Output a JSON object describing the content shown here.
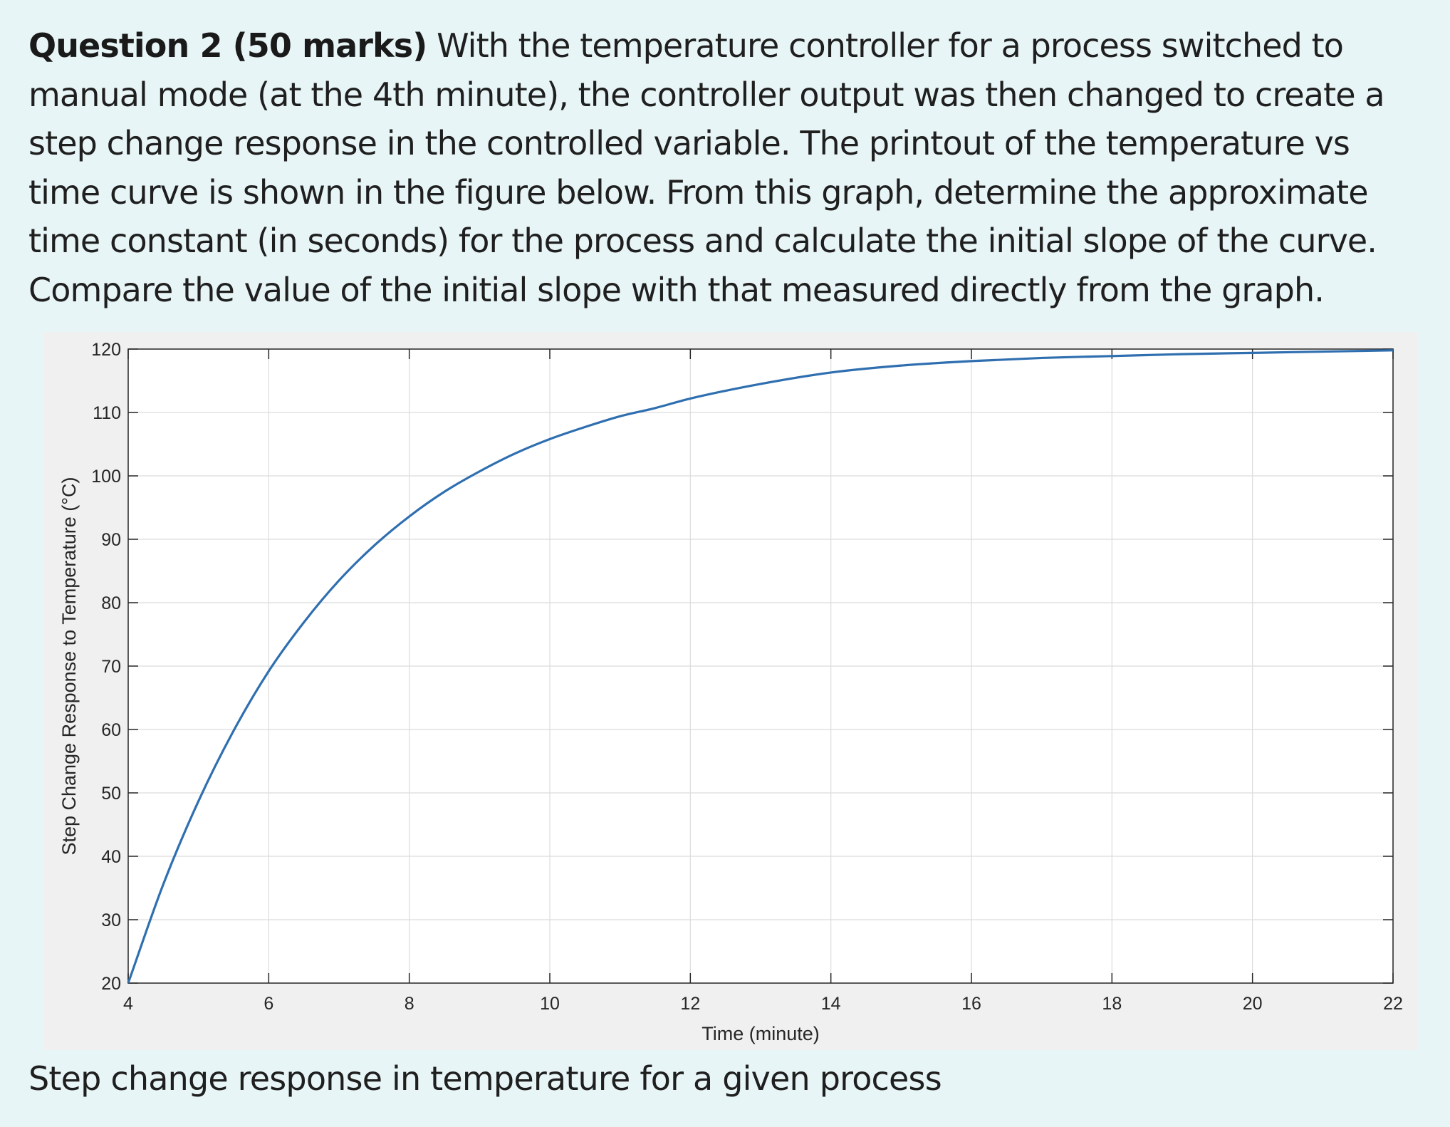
{
  "question": {
    "heading": "Question 2 (50 marks)",
    "text": " With the temperature controller for a process switched to manual mode (at the 4th minute), the controller output was then changed to create a step change response in the controlled variable. The printout of the temperature vs time curve is shown in the figure below. From this graph, determine the approximate time constant (in seconds) for the process and calculate the initial slope of the curve. Compare the value of the initial slope with that measured directly from the graph."
  },
  "caption": "Step change response in temperature for a given process",
  "colors": {
    "line": "#2f6fb0",
    "grid": "#dcdcdc",
    "axis": "#262626"
  },
  "chart_data": {
    "type": "line",
    "title": "",
    "xlabel": "Time (minute)",
    "ylabel": "Step Change Response to Temperature (°C)",
    "xlim": [
      4,
      22
    ],
    "ylim": [
      20,
      120
    ],
    "xticks": [
      "4",
      "6",
      "8",
      "10",
      "12",
      "14",
      "16",
      "18",
      "20",
      "22"
    ],
    "yticks": [
      "20",
      "30",
      "40",
      "50",
      "60",
      "70",
      "80",
      "90",
      "100",
      "110",
      "120"
    ],
    "grid": true,
    "series": [
      {
        "x": [
          4,
          4.5,
          5,
          5.5,
          6,
          6.5,
          7,
          7.5,
          8,
          8.5,
          9,
          9.5,
          10,
          10.5,
          11,
          11.5,
          12,
          13,
          14,
          15,
          16,
          17,
          18,
          19,
          20,
          21,
          22
        ],
        "y": [
          20,
          35.6,
          48.7,
          59.8,
          69.2,
          76.9,
          83.5,
          89.0,
          93.6,
          97.5,
          100.7,
          103.5,
          105.8,
          107.7,
          109.4,
          110.7,
          112.2,
          114.5,
          116.3,
          117.4,
          118.1,
          118.6,
          118.9,
          119.2,
          119.4,
          119.6,
          119.8
        ]
      }
    ]
  }
}
